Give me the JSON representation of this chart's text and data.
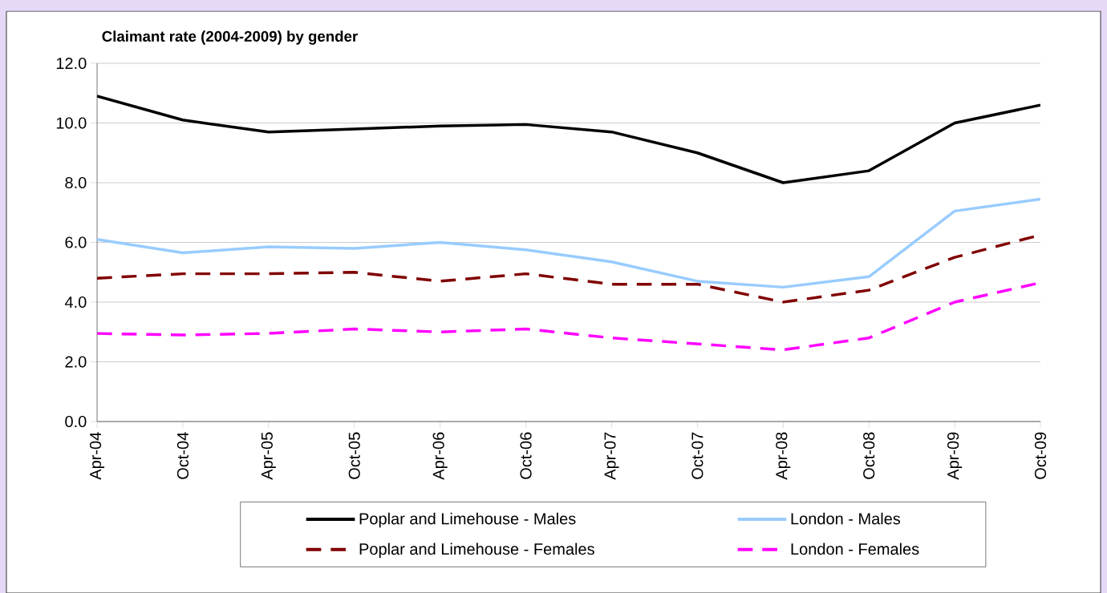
{
  "chart_data": {
    "type": "line",
    "title": "Claimant rate (2004-2009) by gender",
    "categories": [
      "Apr-04",
      "Oct-04",
      "Apr-05",
      "Oct-05",
      "Apr-06",
      "Oct-06",
      "Apr-07",
      "Oct-07",
      "Apr-08",
      "Oct-08",
      "Apr-09",
      "Oct-09"
    ],
    "series": [
      {
        "name": "Poplar and Limehouse - Males",
        "color": "#000000",
        "line_style": "solid",
        "values": [
          10.9,
          10.1,
          9.7,
          9.8,
          9.9,
          9.95,
          9.7,
          9.0,
          8.0,
          8.4,
          10.0,
          10.6
        ]
      },
      {
        "name": "London - Males",
        "color": "#99ccff",
        "line_style": "solid",
        "values": [
          6.1,
          5.65,
          5.85,
          5.8,
          6.0,
          5.75,
          5.35,
          4.7,
          4.5,
          4.85,
          7.05,
          7.45
        ]
      },
      {
        "name": "Poplar and Limehouse - Females",
        "color": "#800000",
        "line_style": "dashed",
        "values": [
          4.8,
          4.95,
          4.95,
          5.0,
          4.7,
          4.95,
          4.6,
          4.6,
          4.0,
          4.4,
          5.5,
          6.25
        ]
      },
      {
        "name": "London - Females",
        "color": "#ff00ff",
        "line_style": "dashed",
        "values": [
          2.95,
          2.9,
          2.95,
          3.1,
          3.0,
          3.1,
          2.8,
          2.6,
          2.4,
          2.8,
          4.0,
          4.65
        ]
      }
    ],
    "ylim": [
      0,
      12
    ],
    "yticks": [
      {
        "value": 0,
        "label": "0.0"
      },
      {
        "value": 2,
        "label": "2.0"
      },
      {
        "value": 4,
        "label": "4.0"
      },
      {
        "value": 6,
        "label": "6.0"
      },
      {
        "value": 8,
        "label": "8.0"
      },
      {
        "value": 10,
        "label": "10.0"
      },
      {
        "value": 12,
        "label": "12.0"
      }
    ],
    "grid": "y",
    "legend": "bottom",
    "marker": "none"
  }
}
